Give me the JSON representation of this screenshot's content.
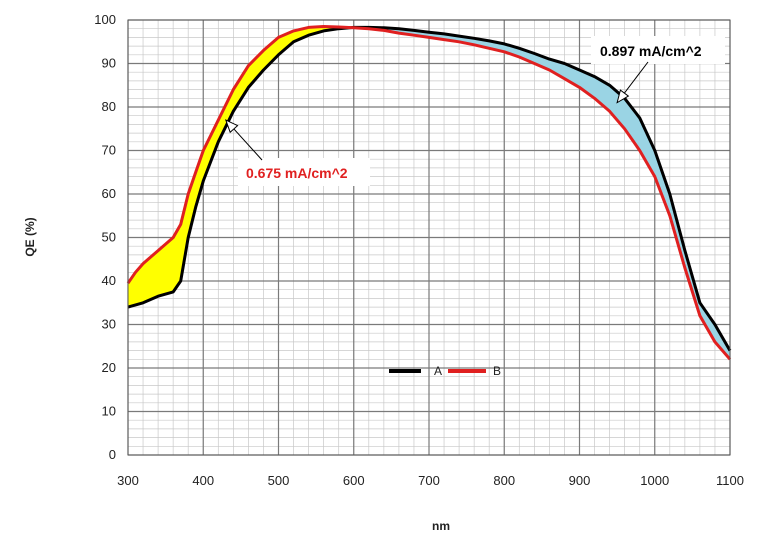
{
  "chart_data": {
    "type": "line",
    "title": "",
    "xlabel": "nm",
    "ylabel": "QE (%)",
    "xlim": [
      300,
      1100
    ],
    "ylim": [
      0,
      100
    ],
    "x_ticks": [
      300,
      400,
      500,
      600,
      700,
      800,
      900,
      1000,
      1100
    ],
    "y_ticks": [
      0,
      10,
      20,
      30,
      40,
      50,
      60,
      70,
      80,
      90,
      100
    ],
    "x_tick_labels": [
      "300",
      "400",
      "500",
      "600",
      "700",
      "800",
      "900",
      "1000",
      "1100"
    ],
    "y_tick_labels": [
      "0",
      "10",
      "20",
      "30",
      "40",
      "50",
      "60",
      "70",
      "80",
      "90",
      "100"
    ],
    "minor_grid_x_step": 20,
    "minor_grid_y_step": 2,
    "legend_position": "bottom-center",
    "series": [
      {
        "name": "A",
        "color": "#000000",
        "x": [
          300,
          320,
          340,
          360,
          370,
          380,
          390,
          400,
          420,
          440,
          460,
          480,
          500,
          520,
          540,
          560,
          580,
          600,
          620,
          640,
          660,
          680,
          700,
          720,
          740,
          760,
          780,
          800,
          820,
          840,
          860,
          880,
          900,
          920,
          940,
          960,
          980,
          1000,
          1020,
          1040,
          1060,
          1080,
          1100
        ],
        "values": [
          34,
          35,
          36.5,
          37.5,
          40,
          50,
          57,
          63,
          72,
          79,
          84.5,
          88.5,
          92,
          95,
          96.5,
          97.5,
          98,
          98.3,
          98.3,
          98.2,
          98,
          97.6,
          97.2,
          96.8,
          96.3,
          95.8,
          95.2,
          94.5,
          93.5,
          92.3,
          91,
          90,
          88.5,
          87,
          85,
          82,
          77.5,
          70,
          60,
          47,
          35,
          30,
          24
        ]
      },
      {
        "name": "B",
        "color": "#e02020",
        "x": [
          300,
          310,
          320,
          340,
          360,
          370,
          380,
          390,
          400,
          420,
          440,
          460,
          480,
          500,
          520,
          540,
          560,
          580,
          600,
          620,
          640,
          660,
          680,
          700,
          720,
          740,
          760,
          780,
          800,
          820,
          840,
          860,
          880,
          900,
          920,
          940,
          960,
          980,
          1000,
          1020,
          1040,
          1060,
          1080,
          1100
        ],
        "values": [
          39.5,
          42,
          44,
          47,
          50,
          53,
          60,
          65,
          70,
          77,
          84,
          89.5,
          93,
          96,
          97.5,
          98.3,
          98.5,
          98.4,
          98.2,
          98,
          97.6,
          97,
          96.5,
          96,
          95.5,
          95,
          94.3,
          93.5,
          92.7,
          91.5,
          90,
          88.5,
          86.5,
          84.5,
          82,
          79,
          75,
          70,
          64,
          55,
          43,
          32,
          26,
          22
        ]
      }
    ],
    "shaded_regions": [
      {
        "between": [
          "B",
          "A"
        ],
        "x_range": [
          300,
          620
        ],
        "color": "#ffff00"
      },
      {
        "between": [
          "A",
          "B"
        ],
        "x_range": [
          620,
          1100
        ],
        "color": "#9ad4e4"
      }
    ],
    "annotations": [
      {
        "text": "0.675 mA/cm^2",
        "color": "#e02020",
        "points_to": [
          430,
          77
        ]
      },
      {
        "text": "0.897 mA/cm^2",
        "color": "#000000",
        "points_to": [
          950,
          81
        ]
      }
    ]
  }
}
